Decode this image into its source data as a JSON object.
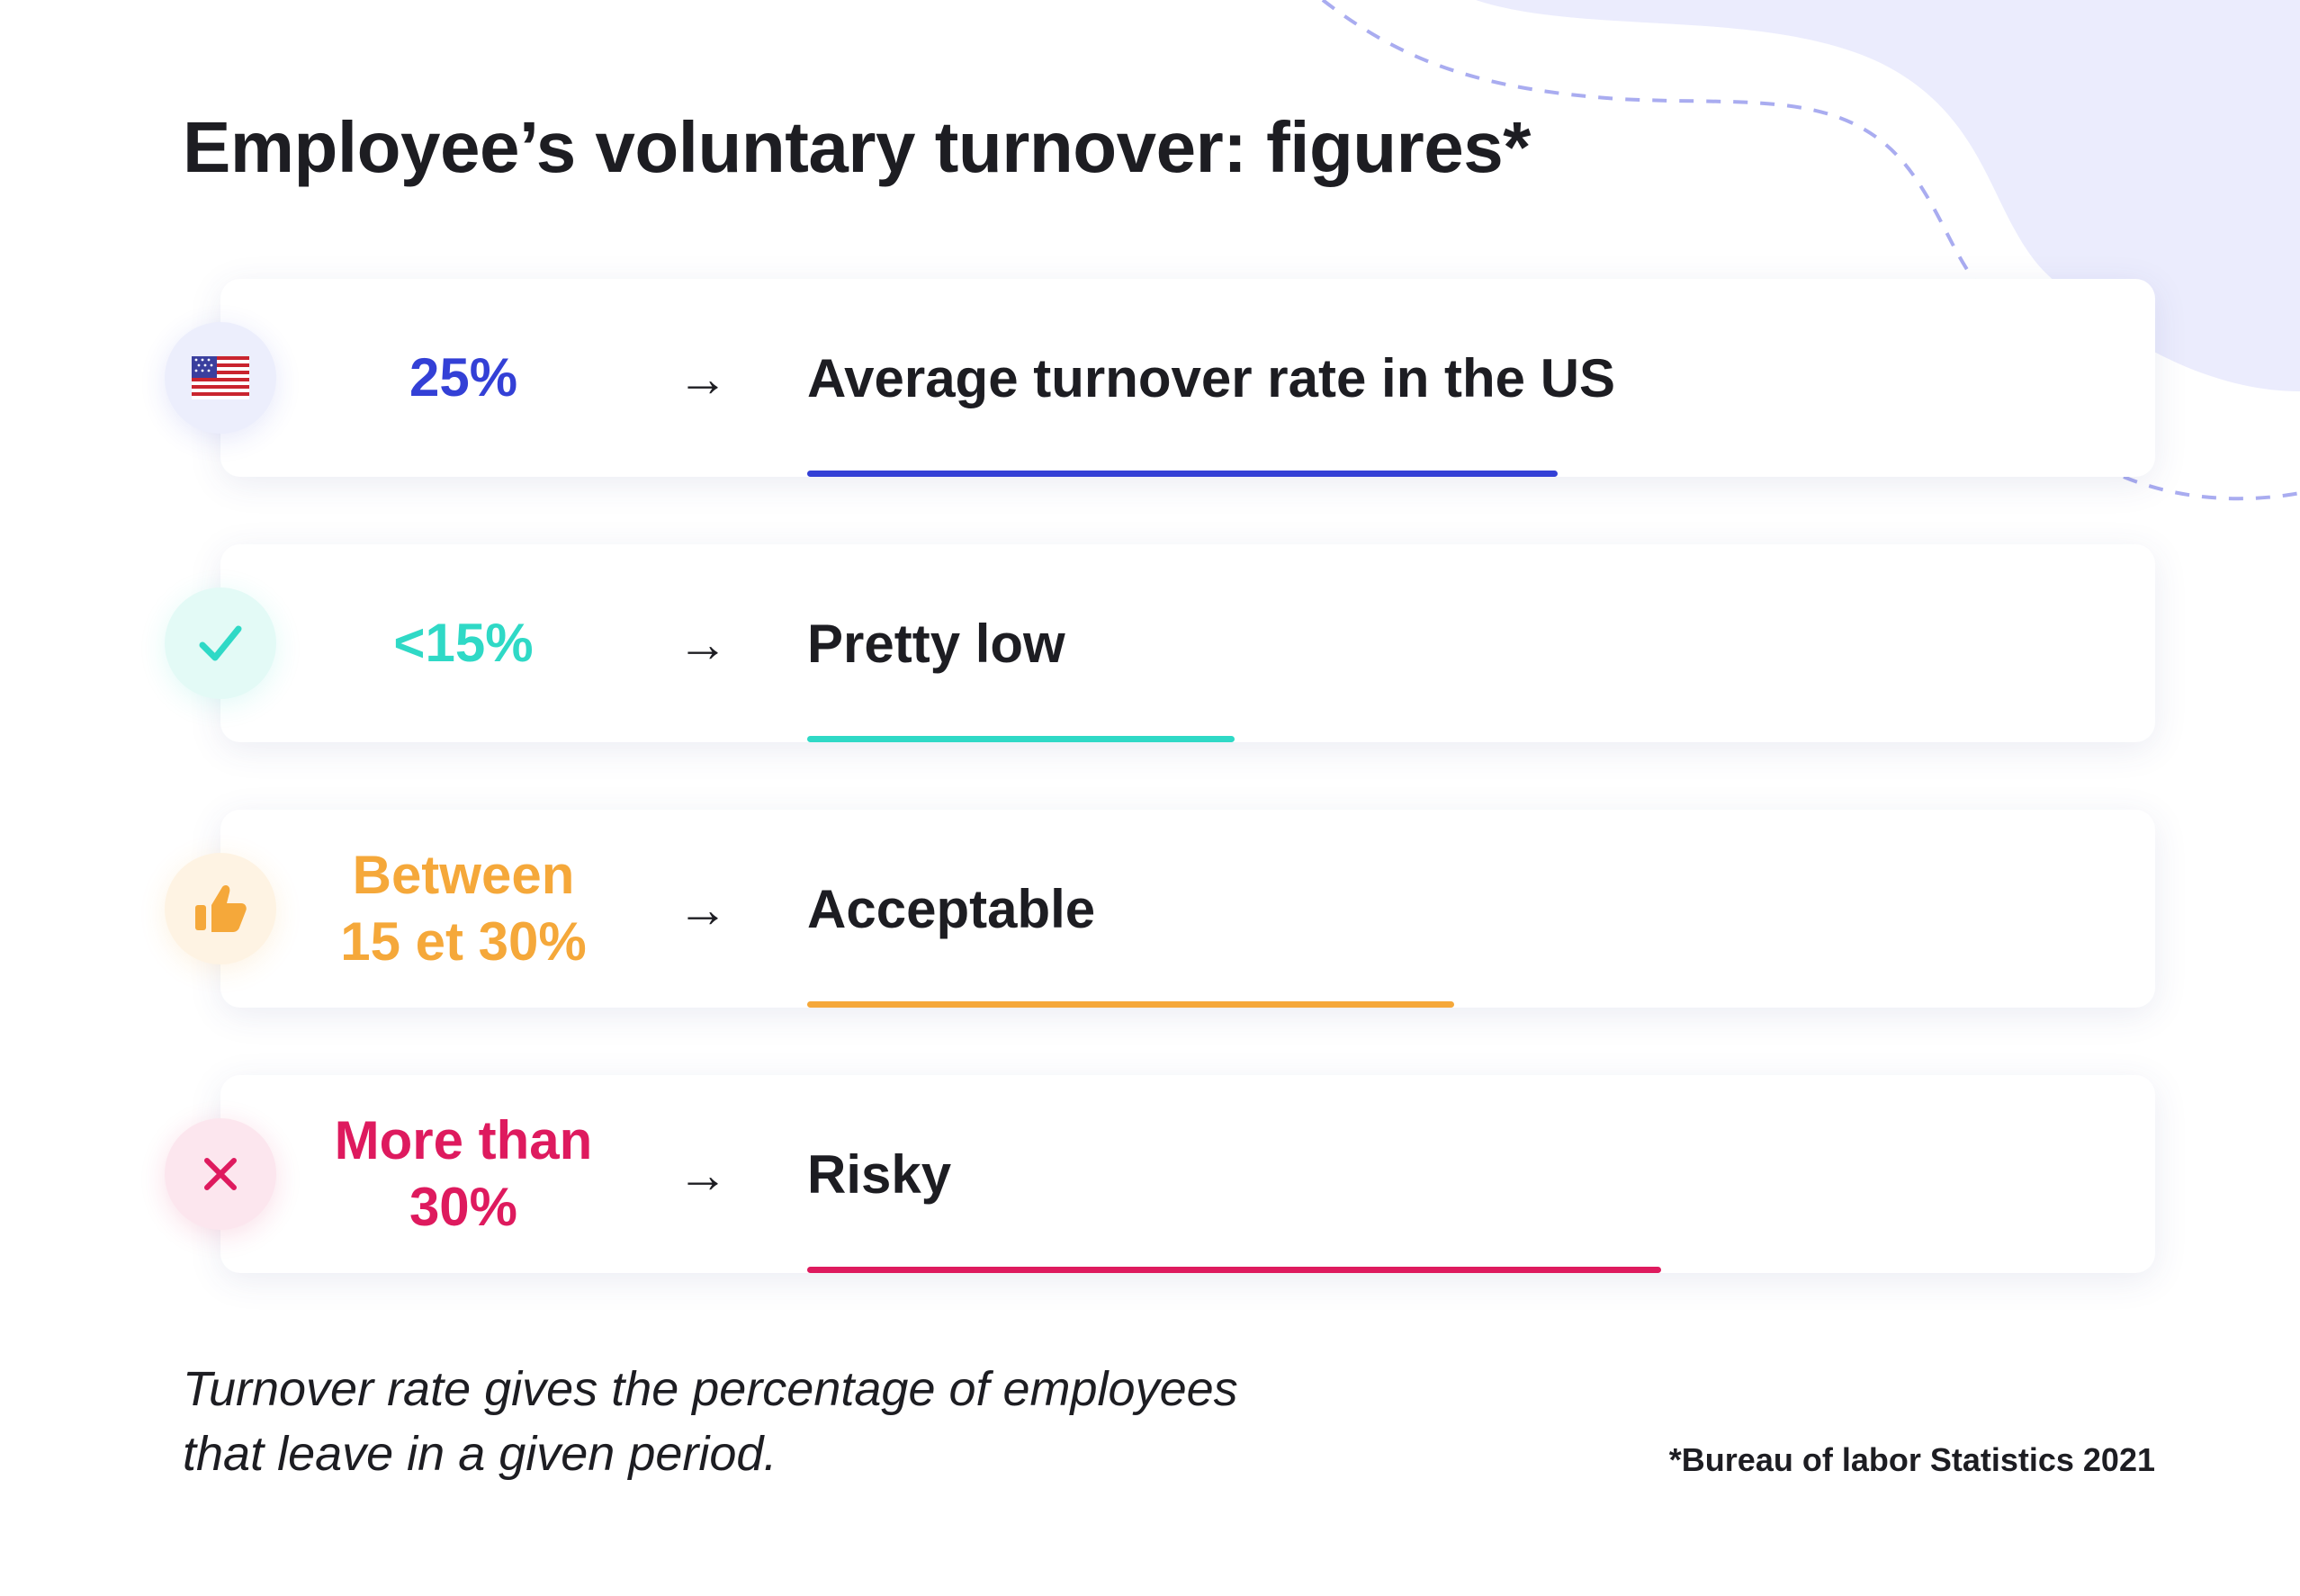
{
  "title": "Employee’s voluntary turnover: figures*",
  "rows": [
    {
      "icon": "us-flag-icon",
      "value_lines": [
        "25%"
      ],
      "arrow": "→",
      "label": "Average turnover rate in the US",
      "color": "#3340d6",
      "icon_bg": "#eceefc",
      "bar_fraction": 0.58
    },
    {
      "icon": "check-icon",
      "value_lines": [
        "<15%"
      ],
      "arrow": "→",
      "label": "Pretty low",
      "color": "#2fd9c6",
      "icon_bg": "#e3faf6",
      "bar_fraction": 0.33
    },
    {
      "icon": "thumbs-up-icon",
      "value_lines": [
        "Between",
        "15 et 30%"
      ],
      "arrow": "→",
      "label": "Acceptable",
      "color": "#f5a83a",
      "icon_bg": "#fef3e3",
      "bar_fraction": 0.5
    },
    {
      "icon": "close-icon",
      "value_lines": [
        "More than",
        "30%"
      ],
      "arrow": "→",
      "label": "Risky",
      "color": "#de1a5e",
      "icon_bg": "#fce6ee",
      "bar_fraction": 0.66
    }
  ],
  "footnote_lines": [
    "Turnover rate gives the percentage of employees",
    "that leave in a given period."
  ],
  "source": "*Bureau of labor Statistics 2021"
}
